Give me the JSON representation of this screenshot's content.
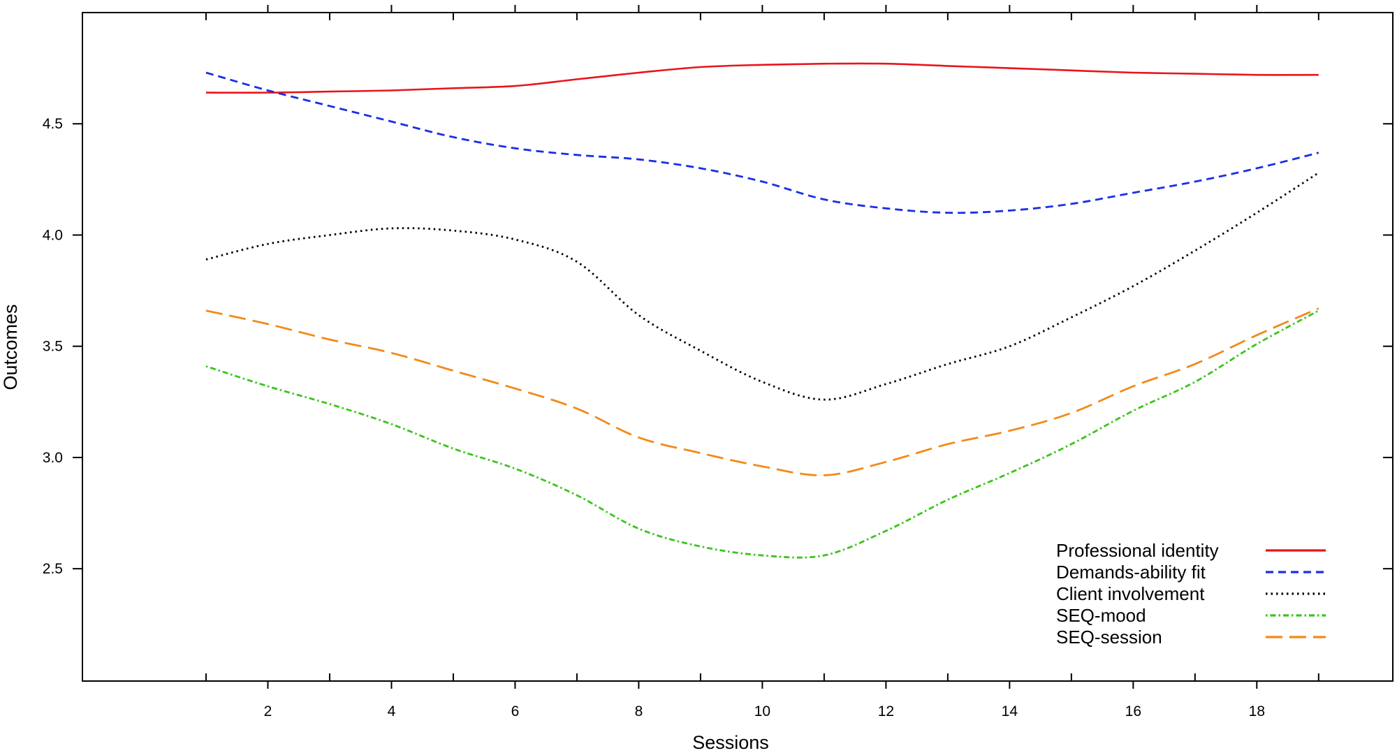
{
  "chart_data": {
    "type": "line",
    "xlabel": "Sessions",
    "ylabel": "Outcomes",
    "xlim": [
      -1.0,
      20.2
    ],
    "ylim": [
      1.995,
      5.0
    ],
    "x_ticks": [
      2,
      4,
      6,
      8,
      10,
      12,
      14,
      16,
      18
    ],
    "y_ticks": [
      2.5,
      3.0,
      3.5,
      4.0,
      4.5
    ],
    "x_tick_labels": [
      "2",
      "4",
      "6",
      "8",
      "10",
      "12",
      "14",
      "16",
      "18"
    ],
    "y_tick_labels": [
      "2.5",
      "3.0",
      "3.5",
      "4.0",
      "4.5"
    ],
    "legend_position": "bottom-right",
    "x": [
      1,
      2,
      3,
      4,
      5,
      6,
      7,
      8,
      9,
      10,
      11,
      12,
      13,
      14,
      15,
      16,
      17,
      18,
      19
    ],
    "series": [
      {
        "name": "Professional identity",
        "color": "#e8141c",
        "dash": "solid",
        "values": [
          4.64,
          4.64,
          4.645,
          4.65,
          4.66,
          4.67,
          4.7,
          4.73,
          4.755,
          4.765,
          4.77,
          4.77,
          4.76,
          4.75,
          4.74,
          4.73,
          4.725,
          4.72,
          4.72
        ]
      },
      {
        "name": "Demands-ability fit",
        "color": "#1a2ee6",
        "dash": "dashed",
        "values": [
          4.73,
          4.65,
          4.58,
          4.51,
          4.44,
          4.39,
          4.36,
          4.34,
          4.3,
          4.24,
          4.16,
          4.12,
          4.1,
          4.11,
          4.14,
          4.19,
          4.24,
          4.3,
          4.37
        ]
      },
      {
        "name": "Client involvement",
        "color": "#000000",
        "dash": "dotted",
        "values": [
          3.89,
          3.96,
          4.0,
          4.03,
          4.02,
          3.98,
          3.88,
          3.64,
          3.48,
          3.34,
          3.26,
          3.33,
          3.42,
          3.5,
          3.63,
          3.77,
          3.93,
          4.1,
          4.28
        ]
      },
      {
        "name": "SEQ-mood",
        "color": "#3cc41a",
        "dash": "dotdash",
        "values": [
          3.41,
          3.32,
          3.24,
          3.15,
          3.04,
          2.95,
          2.83,
          2.68,
          2.6,
          2.56,
          2.56,
          2.67,
          2.81,
          2.93,
          3.06,
          3.21,
          3.34,
          3.51,
          3.66
        ]
      },
      {
        "name": "SEQ-session",
        "color": "#f28a18",
        "dash": "longdash",
        "values": [
          3.66,
          3.6,
          3.53,
          3.47,
          3.39,
          3.31,
          3.22,
          3.09,
          3.02,
          2.96,
          2.92,
          2.98,
          3.06,
          3.12,
          3.2,
          3.32,
          3.42,
          3.55,
          3.67
        ]
      }
    ]
  }
}
